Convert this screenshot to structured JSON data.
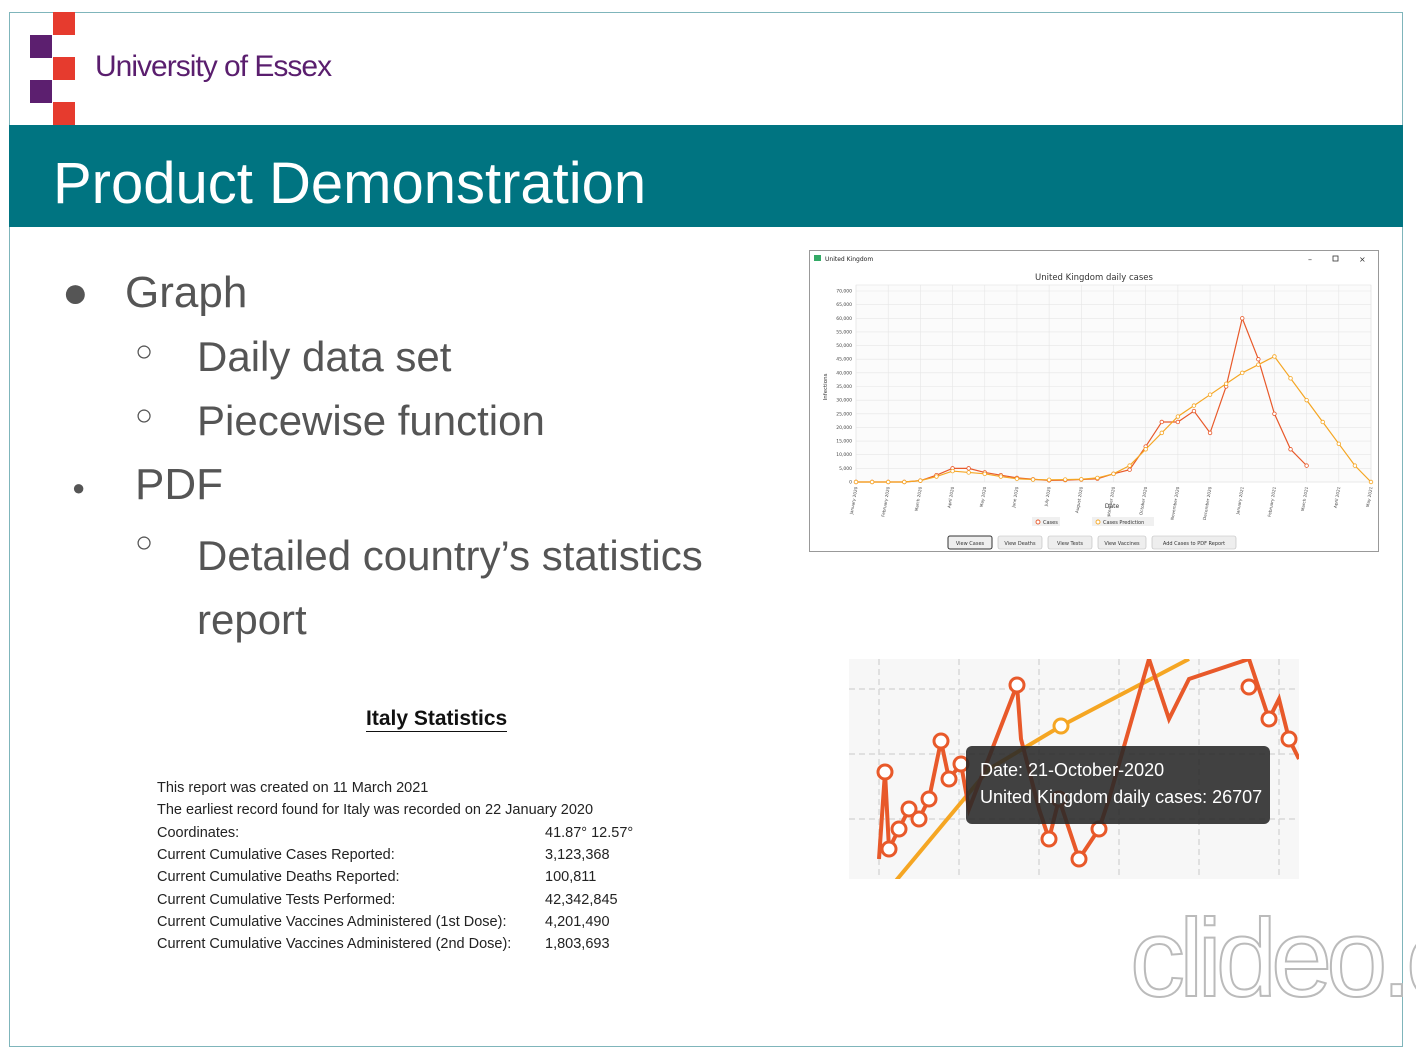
{
  "header": {
    "logo_text": "University of Essex",
    "title": "Product Demonstration"
  },
  "bullets": [
    {
      "text": "Graph",
      "sub": [
        "Daily data set",
        "Piecewise function"
      ]
    },
    {
      "text": "PDF",
      "sub": [
        "Detailed country’s statistics report"
      ]
    }
  ],
  "graph_window": {
    "window_title": "United Kingdom",
    "buttons": [
      "View Cases",
      "View Deaths",
      "View Tests",
      "View Vaccines",
      "Add Cases to PDF Report"
    ],
    "chart": {
      "type": "line",
      "title": "United Kingdom daily cases",
      "y_label": "Infections",
      "x_label": "Date",
      "categories": [
        "January 2020",
        null,
        "February 2020",
        null,
        "March 2020",
        null,
        "April 2020",
        null,
        "May 2020",
        null,
        "June 2020",
        null,
        "July 2020",
        null,
        "August 2020",
        null,
        "September 2020",
        null,
        "October 2020",
        null,
        "November 2020",
        null,
        "December 2020",
        null,
        "January 2021",
        null,
        "February 2021",
        null,
        "March 2021",
        null,
        "April 2021",
        null,
        "May 2021"
      ],
      "series": [
        {
          "name": "Cases",
          "color": "#e8592a",
          "values": [
            0,
            0,
            0,
            0,
            500,
            2500,
            5000,
            5000,
            3500,
            2500,
            1500,
            1000,
            600,
            700,
            900,
            1200,
            3000,
            4500,
            13000,
            22000,
            22000,
            26000,
            18000,
            35000,
            60000,
            45000,
            25000,
            12000,
            6000,
            null,
            null,
            null,
            null
          ]
        },
        {
          "name": "Cases Prediction",
          "color": "#f5a623",
          "values": [
            0,
            0,
            0,
            0,
            500,
            2000,
            4000,
            3500,
            3000,
            2000,
            1200,
            900,
            800,
            900,
            1000,
            1500,
            3000,
            6000,
            12000,
            18000,
            24000,
            28000,
            32000,
            36000,
            40000,
            43000,
            46000,
            38000,
            30000,
            22000,
            14000,
            6000,
            0
          ]
        }
      ],
      "ylim": [
        0,
        70000
      ],
      "yticks": [
        0,
        {
          "value": 5000,
          "label": "5,000"
        },
        {
          "value": 10000,
          "label": "10,000"
        },
        {
          "value": 15000,
          "label": "15,000"
        },
        {
          "value": 20000,
          "label": "20,000"
        },
        {
          "value": 25000,
          "label": "25,000"
        },
        {
          "value": 30000,
          "label": "30,000"
        },
        {
          "value": 35000,
          "label": "35,000"
        },
        {
          "value": 40000,
          "label": "40,000"
        },
        {
          "value": 45000,
          "label": "45,000"
        },
        {
          "value": 50000,
          "label": "50,000"
        },
        {
          "value": 55000,
          "label": "55,000"
        },
        {
          "value": 60000,
          "label": "60,000"
        },
        {
          "value": 65000,
          "label": "65,000"
        },
        {
          "value": 70000,
          "label": "70,000"
        }
      ],
      "grid": true
    }
  },
  "tooltip": {
    "line1": "Date: 21-October-2020",
    "line2": "United Kingdom daily cases: 26707"
  },
  "report": {
    "title": "Italy Statistics",
    "lines": [
      "This report was created on 11 March 2021",
      "The earliest record found for Italy was recorded on 22 January 2020"
    ],
    "rows": [
      [
        "Coordinates:",
        "41.87° 12.57°"
      ],
      [
        "Current Cumulative Cases Reported:",
        "3,123,368"
      ],
      [
        "Current Cumulative Deaths Reported:",
        "100,811"
      ],
      [
        "Current Cumulative Tests Performed:",
        "42,342,845"
      ],
      [
        "Current Cumulative Vaccines Administered (1st Dose):",
        "4,201,490"
      ],
      [
        "Current Cumulative Vaccines Administered (2nd Dose):",
        "1,803,693"
      ]
    ]
  },
  "watermark": "clideo.c"
}
